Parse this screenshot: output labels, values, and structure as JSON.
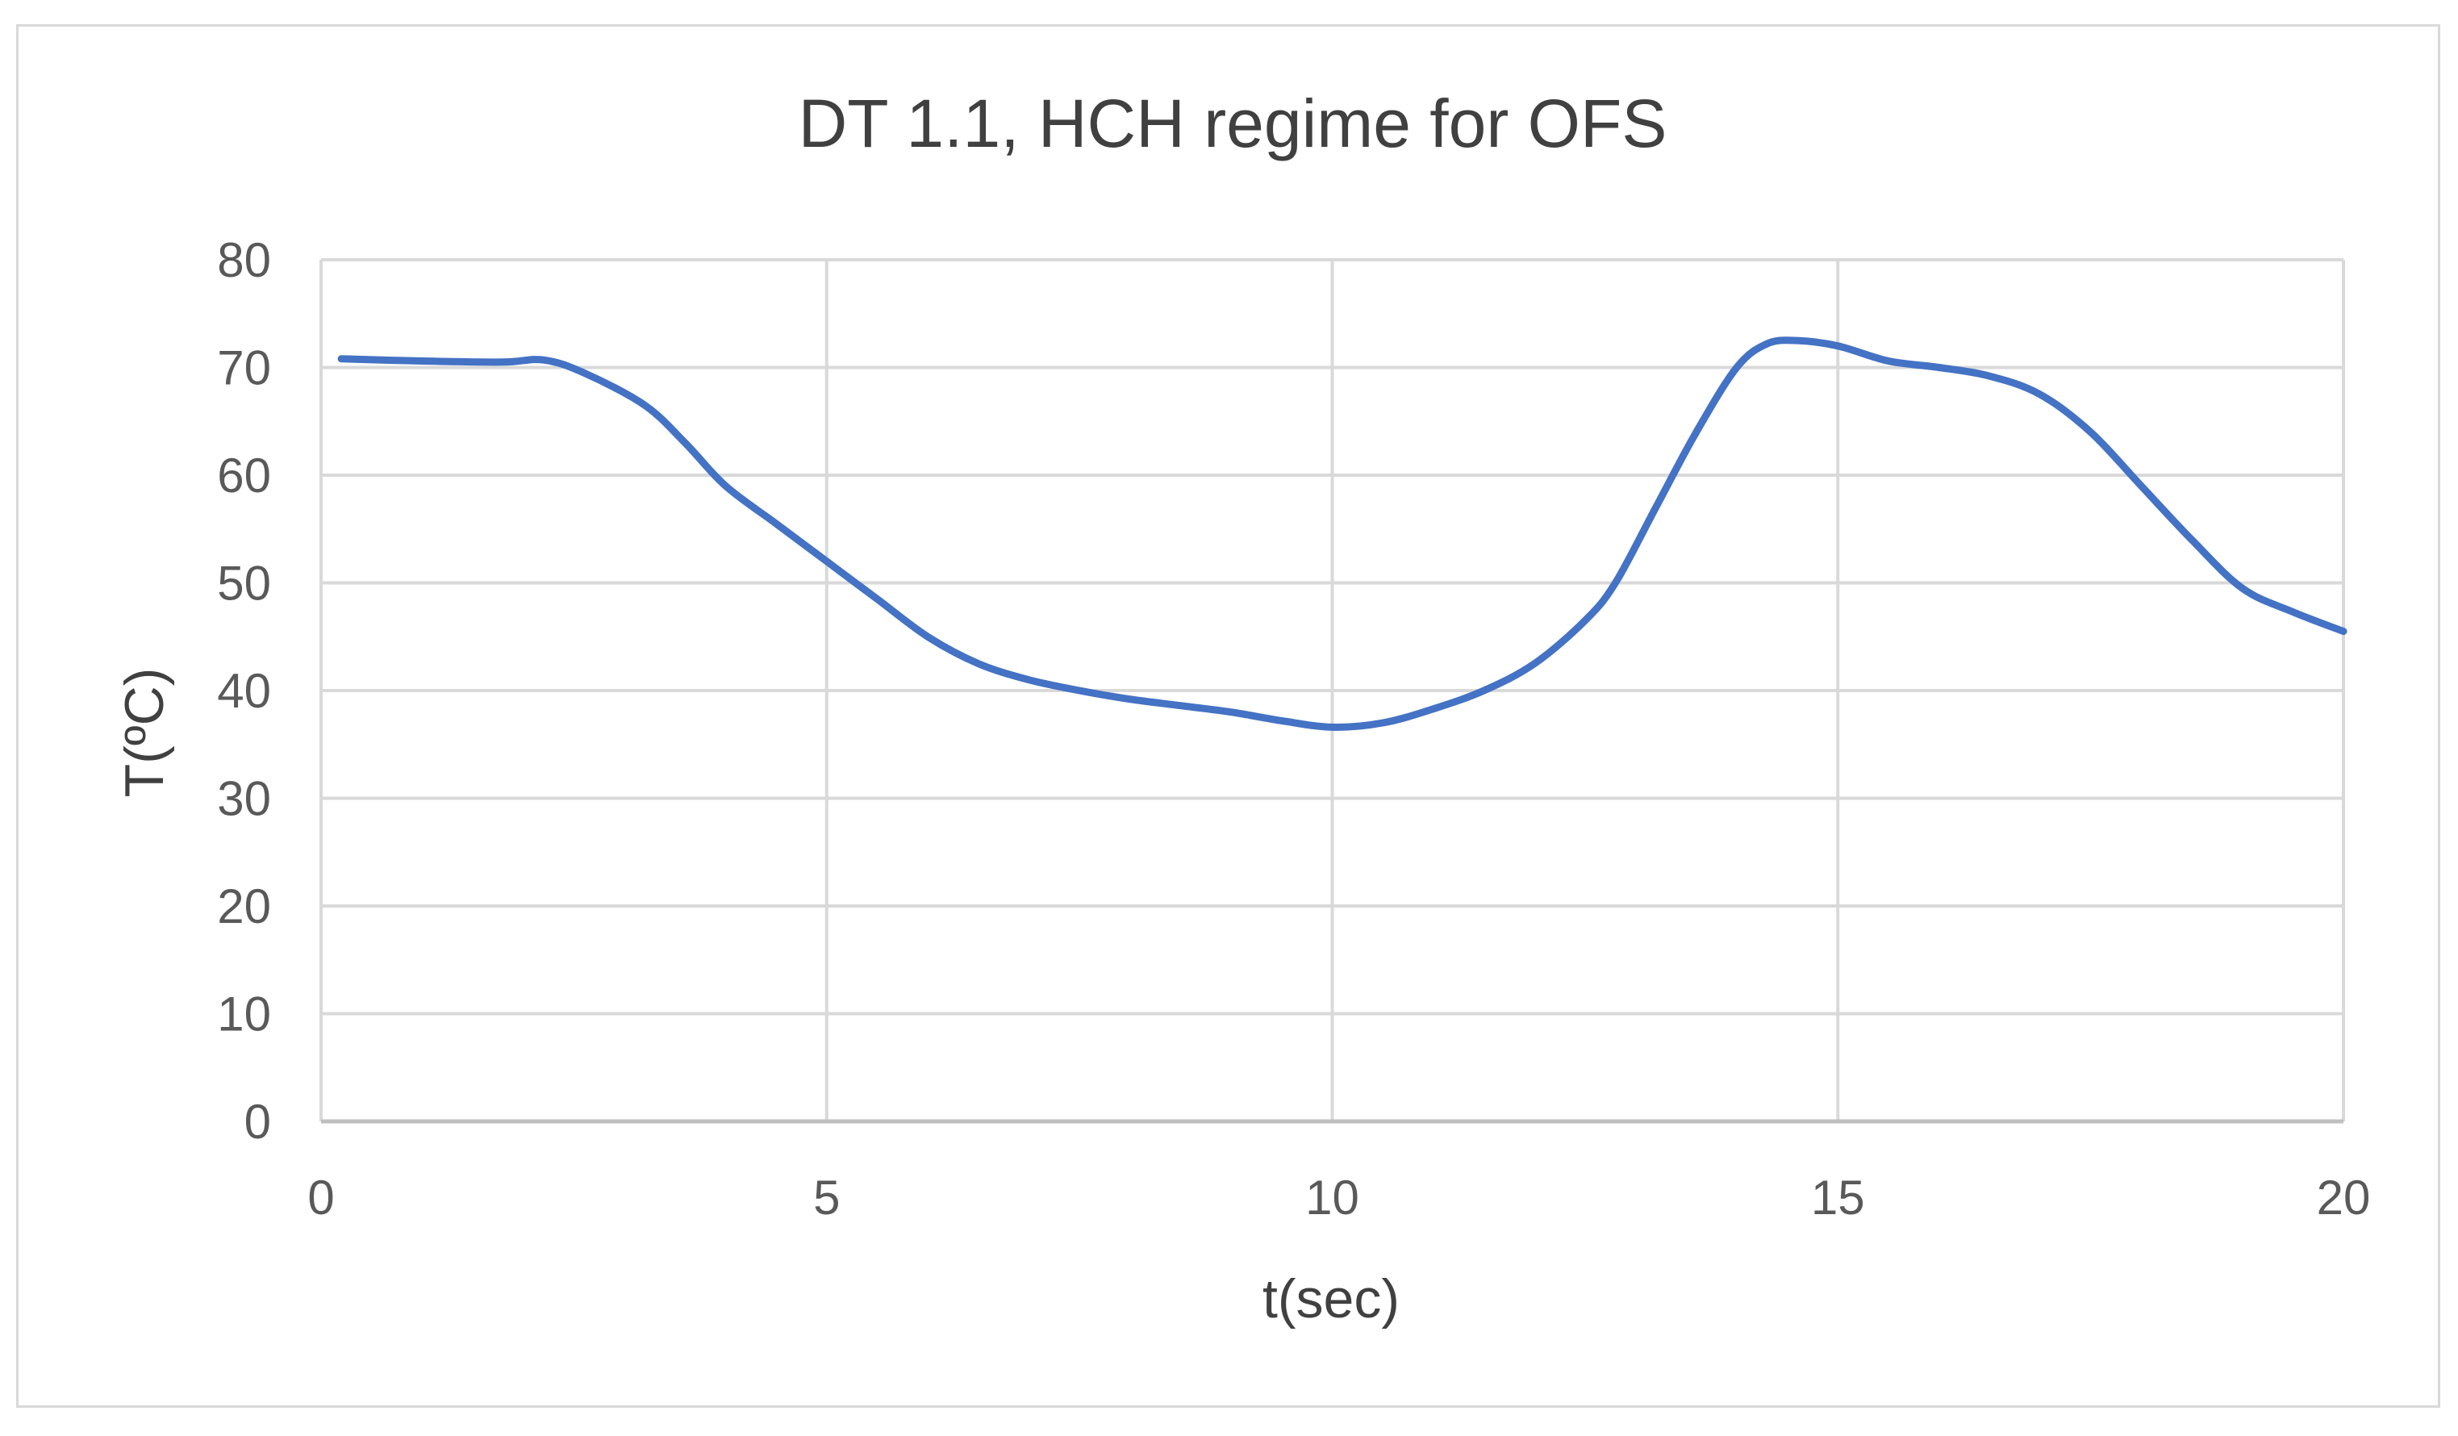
{
  "chart_data": {
    "type": "line",
    "title": "DT 1.1, HCH regime for OFS",
    "xlabel": "t(sec)",
    "ylabel": "T(ºC)",
    "xlim": [
      0,
      20
    ],
    "ylim": [
      0,
      80
    ],
    "x_ticks": [
      0,
      5,
      10,
      15,
      20
    ],
    "y_ticks": [
      0,
      10,
      20,
      30,
      40,
      50,
      60,
      70,
      80
    ],
    "grid": true,
    "legend": "none",
    "colors": {
      "line": "#4472C4",
      "grid": "#d9d9d9",
      "axis": "#bfbfbf"
    },
    "series": [
      {
        "x": [
          0.2,
          1.0,
          1.8,
          2.2,
          2.6,
          3.2,
          3.6,
          4.0,
          4.5,
          5.0,
          5.5,
          6.0,
          6.5,
          7.0,
          7.5,
          8.0,
          8.5,
          9.0,
          9.5,
          10.0,
          10.5,
          11.0,
          11.5,
          12.0,
          12.5,
          12.8,
          13.2,
          13.6,
          14.0,
          14.3,
          14.6,
          15.0,
          15.5,
          16.0,
          16.5,
          17.0,
          17.5,
          18.0,
          18.5,
          19.0,
          19.5,
          20.0
        ],
        "y": [
          70.8,
          70.6,
          70.5,
          70.7,
          69.5,
          66.5,
          63.0,
          59.0,
          55.5,
          52.0,
          48.5,
          45.0,
          42.5,
          41.0,
          40.0,
          39.2,
          38.6,
          38.0,
          37.2,
          36.6,
          37.0,
          38.3,
          40.0,
          42.5,
          46.5,
          50.0,
          57.0,
          64.0,
          70.0,
          72.2,
          72.5,
          72.0,
          70.6,
          70.0,
          69.2,
          67.5,
          64.0,
          59.0,
          54.0,
          49.5,
          47.3,
          45.5
        ]
      }
    ]
  }
}
